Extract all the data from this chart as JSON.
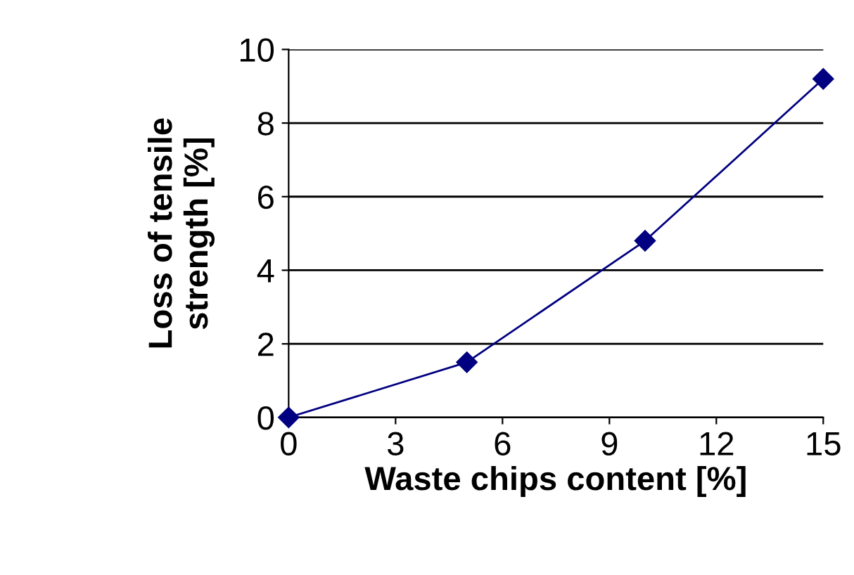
{
  "chart_data": {
    "type": "line",
    "xlabel": "Waste chips content [%]",
    "ylabel": "Loss of tensile\nstrength [%]",
    "x": [
      0,
      5,
      10,
      15
    ],
    "series": [
      {
        "color": "#000080",
        "values": [
          0,
          1.5,
          4.8,
          9.2
        ]
      }
    ],
    "xlim": [
      0,
      15
    ],
    "xticks": [
      0,
      3,
      6,
      9,
      12,
      15
    ],
    "ylim": [
      0,
      10
    ],
    "yticks": [
      0,
      2,
      4,
      6,
      8,
      10
    ],
    "grid": "y",
    "marker": "diamond",
    "line_style": "solid"
  }
}
